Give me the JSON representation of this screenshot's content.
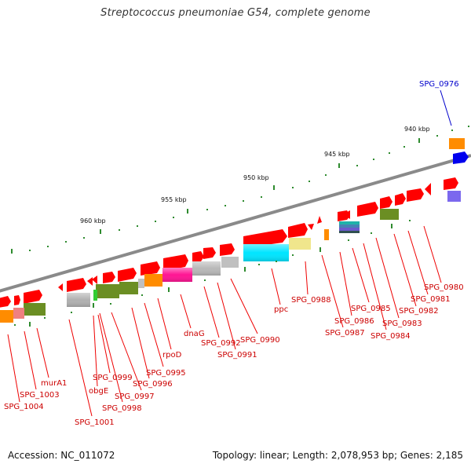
{
  "title": "Streptococcus pneumoniae G54, complete genome",
  "footer": {
    "accession": "Accession: NC_011072",
    "summary": "Topology: linear; Length: 2,078,953 bp; Genes: 2,185"
  },
  "kbp_labels": [
    "940 kbp",
    "945 kbp",
    "950 kbp",
    "955 kbp",
    "960 kbp"
  ],
  "highlight_gene": "SPG_0976",
  "gene_labels": [
    "SPG_0980",
    "SPG_0981",
    "SPG_0982",
    "SPG_0983",
    "SPG_0984",
    "SPG_0985",
    "SPG_0986",
    "SPG_0987",
    "SPG_0988",
    "ppc",
    "SPG_0990",
    "SPG_0991",
    "SPG_0992",
    "dnaG",
    "rpoD",
    "SPG_0995",
    "SPG_0996",
    "SPG_0997",
    "SPG_0998",
    "SPG_0999",
    "obgE",
    "SPG_1001",
    "murA1",
    "SPG_1003",
    "SPG_1004"
  ],
  "colors": {
    "gene": "#ff0000",
    "highlight": "#0000cc",
    "tick": "#2e8b2e",
    "backbone": "#888888",
    "orange": "#ff8c00",
    "olive": "#6b8e23",
    "cyan": "#00ffff",
    "khaki": "#f0e68c",
    "magenta": "#ff1493",
    "grey": "#b0b0b0",
    "pink": "#f08080",
    "slate": "#6a5acd"
  }
}
